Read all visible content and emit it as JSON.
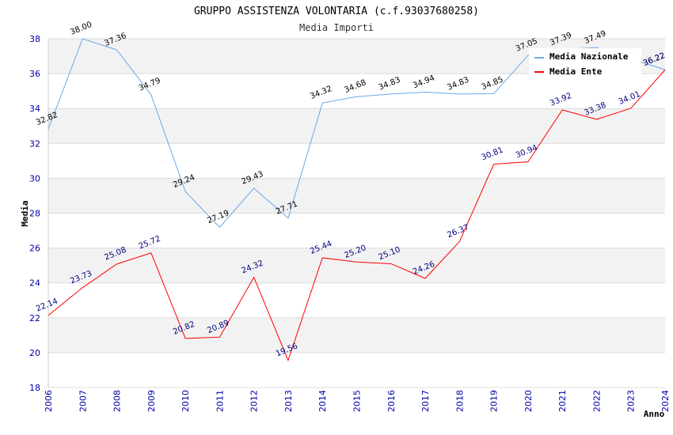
{
  "chart_data": {
    "type": "line",
    "title": "GRUPPO ASSISTENZA VOLONTARIA (c.f.93037680258)",
    "subtitle": "Media Importi",
    "xlabel": "Anno",
    "ylabel": "Media",
    "ylim": [
      18,
      38
    ],
    "yticks": [
      "18",
      "20",
      "22",
      "24",
      "26",
      "28",
      "30",
      "32",
      "34",
      "36",
      "38"
    ],
    "categories": [
      "2006",
      "2007",
      "2008",
      "2009",
      "2010",
      "2011",
      "2012",
      "2013",
      "2014",
      "2015",
      "2016",
      "2017",
      "2018",
      "2019",
      "2020",
      "2021",
      "2022",
      "2023",
      "2024"
    ],
    "series": [
      {
        "name": "Media Nazionale",
        "color": "#6aa8e8",
        "values": [
          32.82,
          38.0,
          37.36,
          34.79,
          29.24,
          27.19,
          29.43,
          27.71,
          34.32,
          34.68,
          34.83,
          34.94,
          34.83,
          34.85,
          37.05,
          37.39,
          37.49,
          null,
          36.22
        ],
        "labels": [
          "32.82",
          "38.00",
          "37.36",
          "34.79",
          "29.24",
          "27.19",
          "29.43",
          "27.71",
          "34.32",
          "34.68",
          "34.83",
          "34.94",
          "34.83",
          "34.85",
          "37.05",
          "37.39",
          "37.49",
          "",
          "36.22"
        ]
      },
      {
        "name": "Media Ente",
        "color": "#ff0000",
        "values": [
          22.14,
          23.73,
          25.08,
          25.72,
          20.82,
          20.89,
          24.32,
          19.56,
          25.44,
          25.2,
          25.1,
          24.26,
          26.37,
          30.81,
          30.94,
          33.92,
          33.38,
          34.01,
          36.22
        ],
        "labels": [
          "22.14",
          "23.73",
          "25.08",
          "25.72",
          "20.82",
          "20.89",
          "24.32",
          "19.56",
          "25.44",
          "25.20",
          "25.10",
          "24.26",
          "26.37",
          "30.81",
          "30.94",
          "33.92",
          "33.38",
          "34.01",
          "36.22"
        ]
      }
    ],
    "legend": "top-right",
    "grid": true
  }
}
